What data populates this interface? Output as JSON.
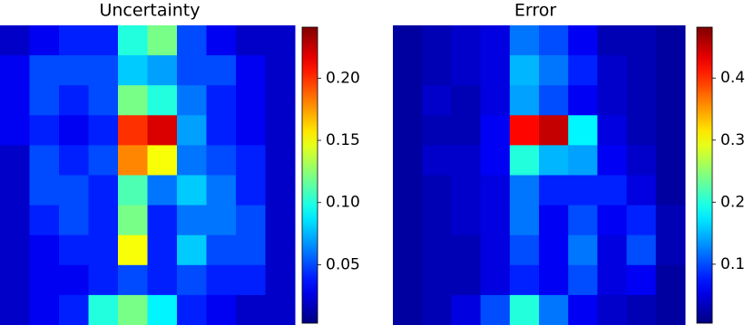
{
  "chart_data": [
    {
      "type": "heatmap",
      "title": "Uncertainty",
      "colormap": "jet",
      "clim": [
        0.003,
        0.241
      ],
      "cticks": [
        0.05,
        {
          "value": 0.1,
          "label": "0.10"
        },
        0.15,
        {
          "value": 0.2,
          "label": "0.20"
        }
      ],
      "values": [
        [
          0.02,
          0.03,
          0.04,
          0.04,
          0.1,
          0.12,
          0.05,
          0.03,
          0.02,
          0.02
        ],
        [
          0.03,
          0.05,
          0.05,
          0.05,
          0.08,
          0.07,
          0.05,
          0.05,
          0.03,
          0.02
        ],
        [
          0.03,
          0.05,
          0.04,
          0.05,
          0.12,
          0.1,
          0.06,
          0.04,
          0.03,
          0.02
        ],
        [
          0.03,
          0.04,
          0.03,
          0.04,
          0.2,
          0.22,
          0.07,
          0.04,
          0.03,
          0.02
        ],
        [
          0.02,
          0.05,
          0.04,
          0.05,
          0.18,
          0.15,
          0.06,
          0.05,
          0.04,
          0.02
        ],
        [
          0.02,
          0.05,
          0.05,
          0.04,
          0.11,
          0.06,
          0.08,
          0.06,
          0.04,
          0.02
        ],
        [
          0.02,
          0.04,
          0.05,
          0.04,
          0.12,
          0.04,
          0.06,
          0.06,
          0.05,
          0.02
        ],
        [
          0.02,
          0.03,
          0.04,
          0.04,
          0.15,
          0.04,
          0.08,
          0.05,
          0.05,
          0.02
        ],
        [
          0.02,
          0.03,
          0.03,
          0.04,
          0.05,
          0.04,
          0.05,
          0.04,
          0.04,
          0.02
        ],
        [
          0.02,
          0.03,
          0.04,
          0.1,
          0.12,
          0.09,
          0.04,
          0.03,
          0.02,
          0.02
        ]
      ]
    },
    {
      "type": "heatmap",
      "title": "Error",
      "colormap": "jet",
      "clim": [
        0.005,
        0.482
      ],
      "cticks": [
        0.1,
        0.2,
        0.3,
        0.4
      ],
      "values": [
        [
          0.02,
          0.03,
          0.04,
          0.05,
          0.12,
          0.1,
          0.06,
          0.03,
          0.03,
          0.02
        ],
        [
          0.02,
          0.03,
          0.04,
          0.05,
          0.15,
          0.12,
          0.08,
          0.04,
          0.03,
          0.02
        ],
        [
          0.02,
          0.04,
          0.03,
          0.05,
          0.14,
          0.1,
          0.06,
          0.04,
          0.03,
          0.02
        ],
        [
          0.02,
          0.03,
          0.03,
          0.06,
          0.42,
          0.45,
          0.18,
          0.05,
          0.03,
          0.02
        ],
        [
          0.02,
          0.04,
          0.04,
          0.06,
          0.2,
          0.15,
          0.14,
          0.06,
          0.04,
          0.02
        ],
        [
          0.02,
          0.03,
          0.04,
          0.05,
          0.12,
          0.08,
          0.08,
          0.08,
          0.05,
          0.02
        ],
        [
          0.02,
          0.03,
          0.04,
          0.05,
          0.12,
          0.06,
          0.1,
          0.06,
          0.08,
          0.03
        ],
        [
          0.02,
          0.03,
          0.03,
          0.05,
          0.1,
          0.06,
          0.12,
          0.05,
          0.1,
          0.03
        ],
        [
          0.02,
          0.03,
          0.03,
          0.05,
          0.08,
          0.06,
          0.1,
          0.05,
          0.06,
          0.02
        ],
        [
          0.02,
          0.03,
          0.05,
          0.1,
          0.2,
          0.12,
          0.06,
          0.04,
          0.03,
          0.02
        ]
      ]
    }
  ]
}
